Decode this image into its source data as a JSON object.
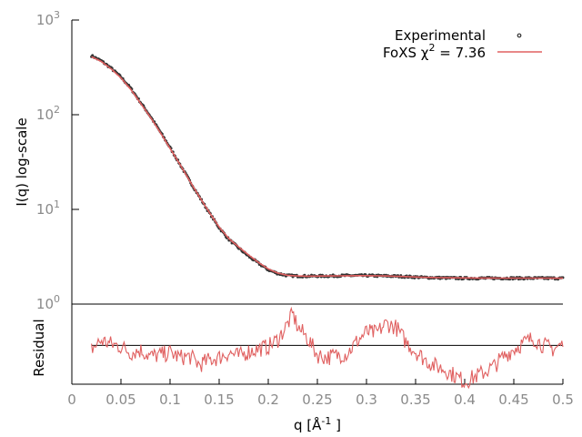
{
  "chart_data": [
    {
      "type": "line",
      "name": "saxs-profile",
      "ylabel": "I(q) log-scale",
      "xlim": [
        0,
        0.5
      ],
      "ylim": [
        1,
        1000
      ],
      "yscale": "log",
      "y_ticks": [
        {
          "value": 1,
          "base": "10",
          "exp": "0"
        },
        {
          "value": 10,
          "base": "10",
          "exp": "1"
        },
        {
          "value": 100,
          "base": "10",
          "exp": "2"
        },
        {
          "value": 1000,
          "base": "10",
          "exp": "3"
        }
      ],
      "grid": false,
      "legend_position": "top-right",
      "legend": {
        "experimental_label": "Experimental",
        "fit_label_prefix": "FoXS χ",
        "fit_label_sup": "2",
        "fit_label_suffix": " = 7.36"
      },
      "colors": {
        "experimental": "#333333",
        "fit": "#e06060"
      },
      "series": [
        {
          "name": "Experimental",
          "style": "points",
          "x": [
            0.02,
            0.03,
            0.04,
            0.05,
            0.06,
            0.07,
            0.08,
            0.09,
            0.1,
            0.11,
            0.12,
            0.13,
            0.14,
            0.15,
            0.16,
            0.17,
            0.18,
            0.19,
            0.2,
            0.21,
            0.22,
            0.23,
            0.24,
            0.25,
            0.26,
            0.27,
            0.28,
            0.29,
            0.3,
            0.31,
            0.32,
            0.33,
            0.34,
            0.35,
            0.36,
            0.37,
            0.38,
            0.39,
            0.4,
            0.41,
            0.42,
            0.43,
            0.44,
            0.45,
            0.46,
            0.47,
            0.48,
            0.49,
            0.5
          ],
          "y": [
            420,
            370,
            310,
            250,
            190,
            135,
            96,
            66,
            45,
            30,
            20,
            13.5,
            9.2,
            6.4,
            4.8,
            3.9,
            3.2,
            2.7,
            2.3,
            2.1,
            2.0,
            1.98,
            1.97,
            1.98,
            1.98,
            1.99,
            2.0,
            2.0,
            2.0,
            1.99,
            1.98,
            1.97,
            1.95,
            1.93,
            1.91,
            1.9,
            1.89,
            1.88,
            1.875,
            1.875,
            1.877,
            1.877,
            1.878,
            1.878,
            1.877,
            1.877,
            1.875,
            1.875,
            1.872
          ]
        },
        {
          "name": "FoXS",
          "style": "line",
          "x": [
            0.02,
            0.03,
            0.04,
            0.05,
            0.06,
            0.07,
            0.08,
            0.09,
            0.1,
            0.11,
            0.12,
            0.13,
            0.14,
            0.15,
            0.16,
            0.17,
            0.18,
            0.19,
            0.2,
            0.21,
            0.22,
            0.23,
            0.24,
            0.25,
            0.26,
            0.27,
            0.28,
            0.29,
            0.3,
            0.31,
            0.32,
            0.33,
            0.34,
            0.35,
            0.36,
            0.37,
            0.38,
            0.39,
            0.4,
            0.41,
            0.42,
            0.43,
            0.44,
            0.45,
            0.46,
            0.47,
            0.48,
            0.49,
            0.5
          ],
          "y": [
            410,
            365,
            305,
            245,
            185,
            132,
            94,
            65,
            44,
            30,
            20,
            13.5,
            9.3,
            6.5,
            4.9,
            4.0,
            3.3,
            2.75,
            2.35,
            2.12,
            2.01,
            1.98,
            1.97,
            1.975,
            1.98,
            1.985,
            1.99,
            1.995,
            1.995,
            1.99,
            1.98,
            1.965,
            1.95,
            1.93,
            1.915,
            1.905,
            1.897,
            1.892,
            1.888,
            1.885,
            1.883,
            1.882,
            1.881,
            1.881,
            1.88,
            1.879,
            1.878,
            1.877,
            1.876
          ]
        }
      ]
    },
    {
      "type": "line",
      "name": "residual-panel",
      "xlabel_prefix": "q [Å",
      "xlabel_sup": "-1",
      "xlabel_suffix": " ]",
      "ylabel": "Residual",
      "xlim": [
        0,
        0.5
      ],
      "x_ticks": [
        0,
        0.05,
        0.1,
        0.15,
        0.2,
        0.25,
        0.3,
        0.35,
        0.4,
        0.45,
        0.5
      ],
      "x_tick_labels": [
        "0",
        "0.05",
        "0.1",
        "0.15",
        "0.2",
        "0.25",
        "0.3",
        "0.35",
        "0.4",
        "0.45",
        "0.5"
      ],
      "ylim": [
        -3.2,
        3.4
      ],
      "zero_line": 0,
      "series": [
        {
          "name": "Residual",
          "x": [
            0.02,
            0.03,
            0.04,
            0.05,
            0.06,
            0.07,
            0.08,
            0.09,
            0.1,
            0.11,
            0.12,
            0.13,
            0.14,
            0.15,
            0.16,
            0.17,
            0.18,
            0.19,
            0.2,
            0.21,
            0.22,
            0.225,
            0.23,
            0.24,
            0.25,
            0.26,
            0.27,
            0.28,
            0.29,
            0.3,
            0.31,
            0.32,
            0.33,
            0.34,
            0.35,
            0.36,
            0.37,
            0.38,
            0.39,
            0.4,
            0.41,
            0.42,
            0.43,
            0.44,
            0.45,
            0.46,
            0.47,
            0.48,
            0.49,
            0.5
          ],
          "y": [
            -0.3,
            0.4,
            0.1,
            -0.1,
            -0.6,
            -0.4,
            -0.9,
            -0.8,
            -0.6,
            -1.0,
            -0.9,
            -1.6,
            -1.2,
            -1.0,
            -0.6,
            -0.9,
            -0.5,
            -0.3,
            -0.1,
            0.5,
            1.8,
            2.6,
            1.5,
            0.6,
            -0.8,
            -1.0,
            -0.8,
            -0.7,
            0.3,
            1.1,
            1.0,
            1.8,
            1.5,
            0.3,
            -0.5,
            -1.2,
            -1.7,
            -2.0,
            -2.5,
            -3.0,
            -2.6,
            -2.2,
            -1.7,
            -0.9,
            -0.3,
            0.2,
            0.6,
            0.0,
            -0.3,
            0.1
          ]
        }
      ]
    }
  ]
}
